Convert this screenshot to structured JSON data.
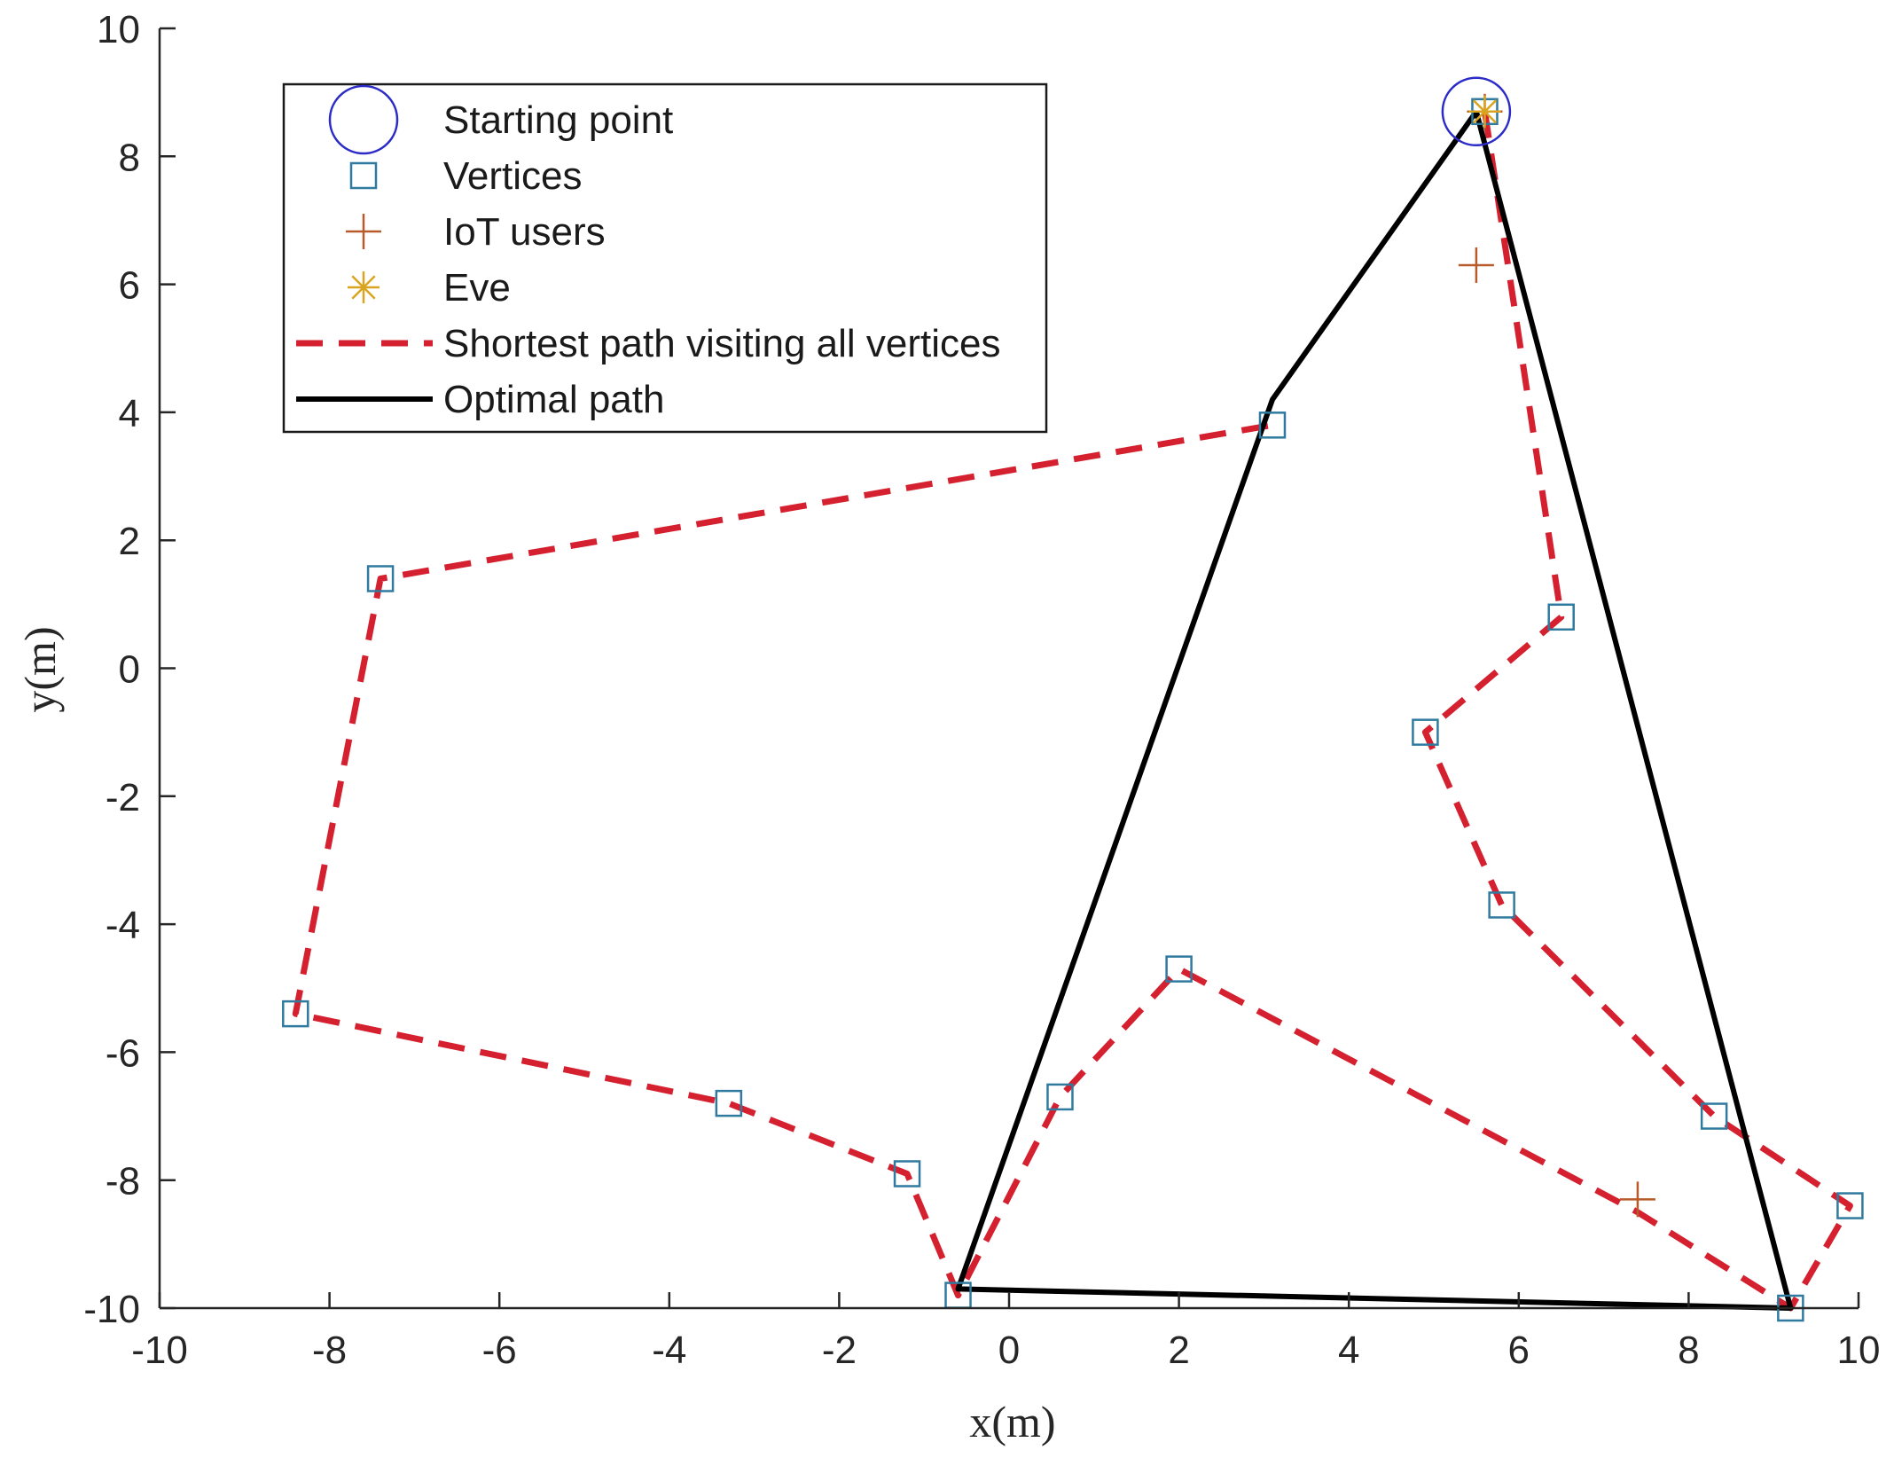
{
  "chart_data": {
    "type": "scatter",
    "xlabel": "x(m)",
    "ylabel": "y(m)",
    "xlim": [
      -10,
      10
    ],
    "ylim": [
      -10,
      10
    ],
    "xticks": [
      "-10",
      "-8",
      "-6",
      "-4",
      "-2",
      "0",
      "2",
      "4",
      "6",
      "8",
      "10"
    ],
    "yticks": [
      "-10",
      "-8",
      "-6",
      "-4",
      "-2",
      "0",
      "2",
      "4",
      "6",
      "8",
      "10"
    ],
    "grid": false,
    "legend_position": "top-left",
    "colors": {
      "start": "#2b2bc8",
      "vertices": "#2f7a9e",
      "iot": "#b85a2a",
      "eve": "#d9a520",
      "shortest": "#d4202f",
      "optimal": "#000000",
      "axis": "#262626"
    },
    "legend": [
      {
        "key": "start",
        "label": "Starting point"
      },
      {
        "key": "vertices",
        "label": "Vertices"
      },
      {
        "key": "iot",
        "label": "IoT users"
      },
      {
        "key": "eve",
        "label": "Eve"
      },
      {
        "key": "shortest",
        "label": "Shortest path visiting all vertices"
      },
      {
        "key": "optimal",
        "label": "Optimal path"
      }
    ],
    "series": [
      {
        "name": "Starting point",
        "key": "start",
        "marker": "circle",
        "points": [
          [
            5.5,
            8.7
          ]
        ]
      },
      {
        "name": "Vertices",
        "key": "vertices",
        "marker": "square",
        "points": [
          [
            5.6,
            8.7
          ],
          [
            3.1,
            3.8
          ],
          [
            -7.4,
            1.4
          ],
          [
            6.5,
            0.8
          ],
          [
            4.9,
            -1.0
          ],
          [
            5.8,
            -3.7
          ],
          [
            2.0,
            -4.7
          ],
          [
            -8.4,
            -5.4
          ],
          [
            0.6,
            -6.7
          ],
          [
            -3.3,
            -6.8
          ],
          [
            8.3,
            -7.0
          ],
          [
            -1.2,
            -7.9
          ],
          [
            9.9,
            -8.4
          ],
          [
            -0.6,
            -9.8
          ],
          [
            9.2,
            -10.0
          ]
        ]
      },
      {
        "name": "IoT users",
        "key": "iot",
        "marker": "plus",
        "points": [
          [
            5.5,
            6.3
          ],
          [
            7.4,
            -8.3
          ],
          [
            5.6,
            8.7
          ]
        ]
      },
      {
        "name": "Eve",
        "key": "eve",
        "marker": "asterisk",
        "points": [
          [
            5.6,
            8.7
          ]
        ]
      },
      {
        "name": "Shortest path visiting all vertices",
        "key": "shortest",
        "line": "dashed",
        "points": [
          [
            5.6,
            8.7
          ],
          [
            6.5,
            0.8
          ],
          [
            4.9,
            -1.0
          ],
          [
            5.8,
            -3.7
          ],
          [
            8.3,
            -7.0
          ],
          [
            9.9,
            -8.4
          ],
          [
            9.2,
            -10.0
          ],
          [
            7.4,
            -8.5
          ],
          [
            2.0,
            -4.7
          ],
          [
            0.6,
            -6.7
          ],
          [
            -0.6,
            -9.8
          ],
          [
            -1.2,
            -7.9
          ],
          [
            -3.3,
            -6.8
          ],
          [
            -8.4,
            -5.4
          ],
          [
            -7.4,
            1.4
          ],
          [
            3.1,
            3.8
          ]
        ]
      },
      {
        "name": "Optimal path",
        "key": "optimal",
        "line": "solid",
        "points": [
          [
            5.5,
            8.7
          ],
          [
            3.1,
            4.2
          ],
          [
            -0.6,
            -9.7
          ],
          [
            9.2,
            -10.0
          ],
          [
            5.5,
            8.7
          ]
        ]
      }
    ]
  }
}
